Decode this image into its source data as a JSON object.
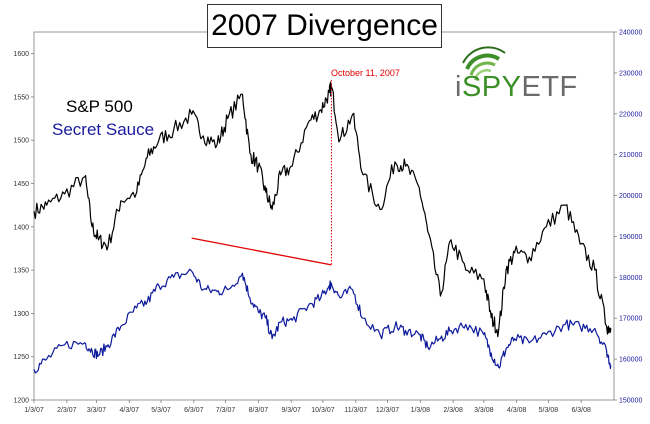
{
  "chart_data": {
    "type": "line",
    "title": "2007 Divergence",
    "x_ticks": [
      "1/3/07",
      "2/3/07",
      "3/3/07",
      "4/3/07",
      "5/3/07",
      "6/3/07",
      "7/3/07",
      "8/3/07",
      "9/3/07",
      "10/3/07",
      "11/3/07",
      "12/3/07",
      "1/3/08",
      "2/3/08",
      "3/3/08",
      "4/3/08",
      "5/3/08",
      "6/3/08"
    ],
    "y_left": {
      "ticks": [
        1200,
        1250,
        1300,
        1350,
        1400,
        1450,
        1500,
        1550,
        1600
      ],
      "range": [
        1200,
        1625
      ]
    },
    "y_right": {
      "ticks": [
        150000,
        160000,
        170000,
        180000,
        190000,
        200000,
        210000,
        220000,
        230000,
        240000
      ],
      "range": [
        150000,
        240000
      ]
    },
    "series": [
      {
        "name": "S&P 500",
        "axis": "left",
        "color": "#000000",
        "x": [
          "2007-01-03",
          "2007-01-15",
          "2007-02-01",
          "2007-02-20",
          "2007-02-27",
          "2007-03-05",
          "2007-03-14",
          "2007-03-26",
          "2007-04-10",
          "2007-04-20",
          "2007-05-01",
          "2007-05-15",
          "2007-06-01",
          "2007-06-12",
          "2007-06-25",
          "2007-07-05",
          "2007-07-19",
          "2007-07-26",
          "2007-08-03",
          "2007-08-10",
          "2007-08-16",
          "2007-08-24",
          "2007-09-04",
          "2007-09-19",
          "2007-10-01",
          "2007-10-09",
          "2007-10-11",
          "2007-10-19",
          "2007-10-31",
          "2007-11-10",
          "2007-11-26",
          "2007-12-10",
          "2007-12-20",
          "2008-01-02",
          "2008-01-10",
          "2008-01-22",
          "2008-02-01",
          "2008-02-15",
          "2008-03-03",
          "2008-03-10",
          "2008-03-17",
          "2008-03-24",
          "2008-04-01",
          "2008-04-15",
          "2008-05-01",
          "2008-05-19",
          "2008-06-02",
          "2008-06-16",
          "2008-06-27",
          "2008-07-01"
        ],
        "y": [
          1418,
          1425,
          1438,
          1458,
          1400,
          1385,
          1378,
          1430,
          1440,
          1480,
          1500,
          1512,
          1530,
          1505,
          1495,
          1525,
          1553,
          1485,
          1470,
          1440,
          1420,
          1460,
          1470,
          1520,
          1535,
          1555,
          1562,
          1500,
          1530,
          1460,
          1420,
          1475,
          1470,
          1445,
          1395,
          1320,
          1385,
          1350,
          1340,
          1295,
          1280,
          1350,
          1370,
          1365,
          1400,
          1425,
          1380,
          1350,
          1285,
          1283
        ]
      },
      {
        "name": "Secret Sauce",
        "axis": "right",
        "color": "#0d1a9c",
        "x": [
          "2007-01-03",
          "2007-01-15",
          "2007-02-01",
          "2007-02-20",
          "2007-02-27",
          "2007-03-05",
          "2007-03-14",
          "2007-03-26",
          "2007-04-10",
          "2007-04-20",
          "2007-05-01",
          "2007-05-15",
          "2007-06-01",
          "2007-06-12",
          "2007-06-25",
          "2007-07-05",
          "2007-07-19",
          "2007-07-26",
          "2007-08-03",
          "2007-08-10",
          "2007-08-16",
          "2007-08-24",
          "2007-09-04",
          "2007-09-19",
          "2007-10-01",
          "2007-10-09",
          "2007-10-11",
          "2007-10-19",
          "2007-10-31",
          "2007-11-10",
          "2007-11-26",
          "2007-12-10",
          "2007-12-20",
          "2008-01-02",
          "2008-01-10",
          "2008-01-22",
          "2008-02-01",
          "2008-02-15",
          "2008-03-03",
          "2008-03-10",
          "2008-03-17",
          "2008-03-24",
          "2008-04-01",
          "2008-04-15",
          "2008-05-01",
          "2008-05-19",
          "2008-06-02",
          "2008-06-16",
          "2008-06-27",
          "2008-07-01"
        ],
        "y": [
          157500,
          160000,
          163500,
          164000,
          162000,
          161000,
          163500,
          168000,
          172500,
          174000,
          178000,
          180000,
          181500,
          177000,
          176500,
          177000,
          181000,
          175000,
          171500,
          170000,
          165000,
          169000,
          169500,
          173000,
          175000,
          178000,
          178500,
          175000,
          177000,
          170000,
          166000,
          168000,
          167000,
          166000,
          163000,
          165000,
          167000,
          168500,
          166000,
          161500,
          158000,
          162500,
          165000,
          164000,
          166000,
          168500,
          168000,
          167500,
          162000,
          158500
        ]
      }
    ],
    "trend_line": {
      "color": "#e00000",
      "start": {
        "x": "2007-06-01",
        "y": 1387
      },
      "end": {
        "x": "2007-10-11",
        "y": 1356
      }
    },
    "marker_line": {
      "color": "#e00000",
      "x": "2007-10-11",
      "label": "October 11, 2007"
    },
    "legend": {
      "position": "top-left"
    },
    "grid": false
  },
  "legend_labels": {
    "sp500": "S&P 500",
    "secret_sauce": "Secret Sauce"
  },
  "logo": {
    "text_prefix": "i",
    "text_highlight": "SPY",
    "text_suffix": "ETF"
  }
}
